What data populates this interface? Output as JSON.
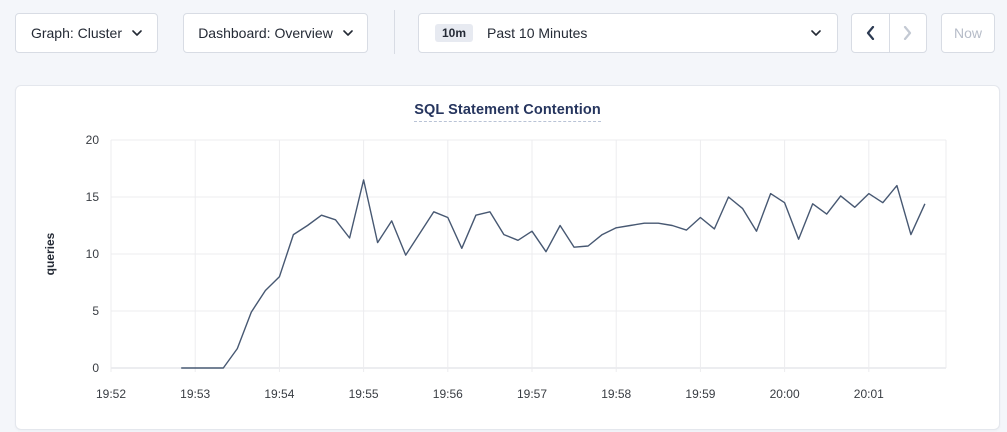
{
  "toolbar": {
    "graph_dropdown": {
      "label": "Graph: Cluster"
    },
    "dashboard_dropdown": {
      "label": "Dashboard: Overview"
    },
    "time_range": {
      "badge": "10m",
      "label": "Past 10 Minutes"
    },
    "now_button": "Now"
  },
  "icons": {
    "graph_dropdown": "chevron-down-icon",
    "dashboard_dropdown": "chevron-down-icon",
    "time_range": "chevron-down-icon",
    "time_prev": "chevron-left-icon",
    "time_next": "chevron-right-icon"
  },
  "chart": {
    "title": "SQL Statement Contention"
  },
  "chart_data": {
    "type": "line",
    "title": "SQL Statement Contention",
    "xlabel": "",
    "ylabel": "queries",
    "ylim": [
      0,
      20
    ],
    "y_ticks": [
      0,
      5,
      10,
      15,
      20
    ],
    "x_ticks": [
      "19:52",
      "19:53",
      "19:54",
      "19:55",
      "19:56",
      "19:57",
      "19:58",
      "19:59",
      "20:00",
      "20:01"
    ],
    "x_domain": [
      "19:52:00",
      "20:01:55"
    ],
    "grid": true,
    "legend": "none",
    "colors": {
      "line": "#475872",
      "grid": "#ececef",
      "axis": "#d9dbe0",
      "tick_text": "#383c42",
      "title": "#26355e"
    },
    "points": [
      {
        "t": "19:52:50",
        "v": 0
      },
      {
        "t": "19:53:00",
        "v": 0
      },
      {
        "t": "19:53:10",
        "v": 0
      },
      {
        "t": "19:53:20",
        "v": 0
      },
      {
        "t": "19:53:30",
        "v": 1.7
      },
      {
        "t": "19:53:40",
        "v": 4.9
      },
      {
        "t": "19:53:50",
        "v": 6.8
      },
      {
        "t": "19:54:00",
        "v": 8.0
      },
      {
        "t": "19:54:10",
        "v": 11.7
      },
      {
        "t": "19:54:20",
        "v": 12.5
      },
      {
        "t": "19:54:30",
        "v": 13.4
      },
      {
        "t": "19:54:40",
        "v": 13.0
      },
      {
        "t": "19:54:50",
        "v": 11.4
      },
      {
        "t": "19:55:00",
        "v": 16.5
      },
      {
        "t": "19:55:10",
        "v": 11.0
      },
      {
        "t": "19:55:20",
        "v": 12.9
      },
      {
        "t": "19:55:30",
        "v": 9.9
      },
      {
        "t": "19:55:40",
        "v": 11.8
      },
      {
        "t": "19:55:50",
        "v": 13.7
      },
      {
        "t": "19:56:00",
        "v": 13.2
      },
      {
        "t": "19:56:10",
        "v": 10.5
      },
      {
        "t": "19:56:20",
        "v": 13.4
      },
      {
        "t": "19:56:30",
        "v": 13.7
      },
      {
        "t": "19:56:40",
        "v": 11.7
      },
      {
        "t": "19:56:50",
        "v": 11.2
      },
      {
        "t": "19:57:00",
        "v": 12.0
      },
      {
        "t": "19:57:10",
        "v": 10.2
      },
      {
        "t": "19:57:20",
        "v": 12.5
      },
      {
        "t": "19:57:30",
        "v": 10.6
      },
      {
        "t": "19:57:40",
        "v": 10.7
      },
      {
        "t": "19:57:50",
        "v": 11.7
      },
      {
        "t": "19:58:00",
        "v": 12.3
      },
      {
        "t": "19:58:10",
        "v": 12.5
      },
      {
        "t": "19:58:20",
        "v": 12.7
      },
      {
        "t": "19:58:30",
        "v": 12.7
      },
      {
        "t": "19:58:40",
        "v": 12.5
      },
      {
        "t": "19:58:50",
        "v": 12.1
      },
      {
        "t": "19:59:00",
        "v": 13.2
      },
      {
        "t": "19:59:10",
        "v": 12.2
      },
      {
        "t": "19:59:20",
        "v": 15.0
      },
      {
        "t": "19:59:30",
        "v": 14.0
      },
      {
        "t": "19:59:40",
        "v": 12.0
      },
      {
        "t": "19:59:50",
        "v": 15.3
      },
      {
        "t": "20:00:00",
        "v": 14.5
      },
      {
        "t": "20:00:10",
        "v": 11.3
      },
      {
        "t": "20:00:20",
        "v": 14.4
      },
      {
        "t": "20:00:30",
        "v": 13.5
      },
      {
        "t": "20:00:40",
        "v": 15.1
      },
      {
        "t": "20:00:50",
        "v": 14.1
      },
      {
        "t": "20:01:00",
        "v": 15.3
      },
      {
        "t": "20:01:10",
        "v": 14.5
      },
      {
        "t": "20:01:20",
        "v": 16.0
      },
      {
        "t": "20:01:30",
        "v": 11.7
      },
      {
        "t": "20:01:40",
        "v": 14.4
      }
    ]
  }
}
